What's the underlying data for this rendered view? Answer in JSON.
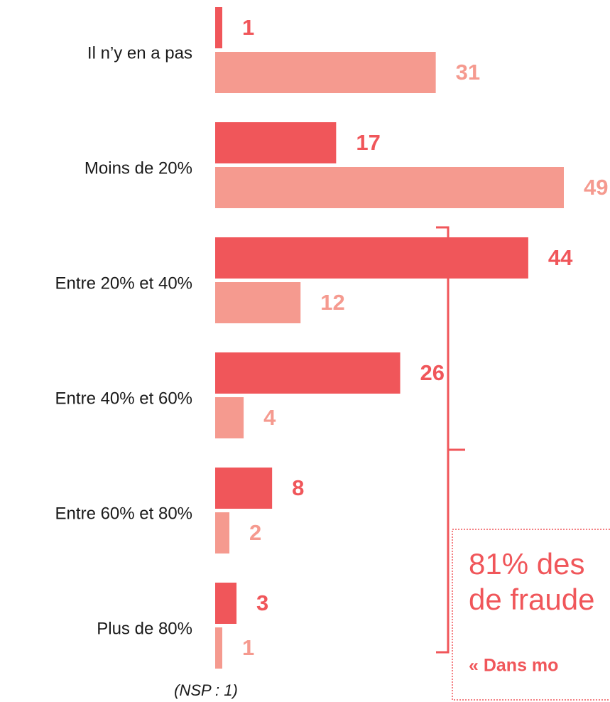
{
  "chart_data": {
    "type": "bar",
    "orientation": "horizontal",
    "categories": [
      "Il n’y en a pas",
      "Moins de 20%",
      "Entre 20% et 40%",
      "Entre 40% et 60%",
      "Entre 60% et 80%",
      "Plus de 80%"
    ],
    "series": [
      {
        "color": "#f0565a",
        "values": [
          1,
          17,
          44,
          26,
          8,
          3
        ]
      },
      {
        "color": "#f59a8f",
        "values": [
          31,
          49,
          12,
          4,
          2,
          1
        ]
      }
    ],
    "annotations": [
      "(NSP : 1)",
      "81% des",
      "de fraude",
      "« Dans mo"
    ]
  }
}
